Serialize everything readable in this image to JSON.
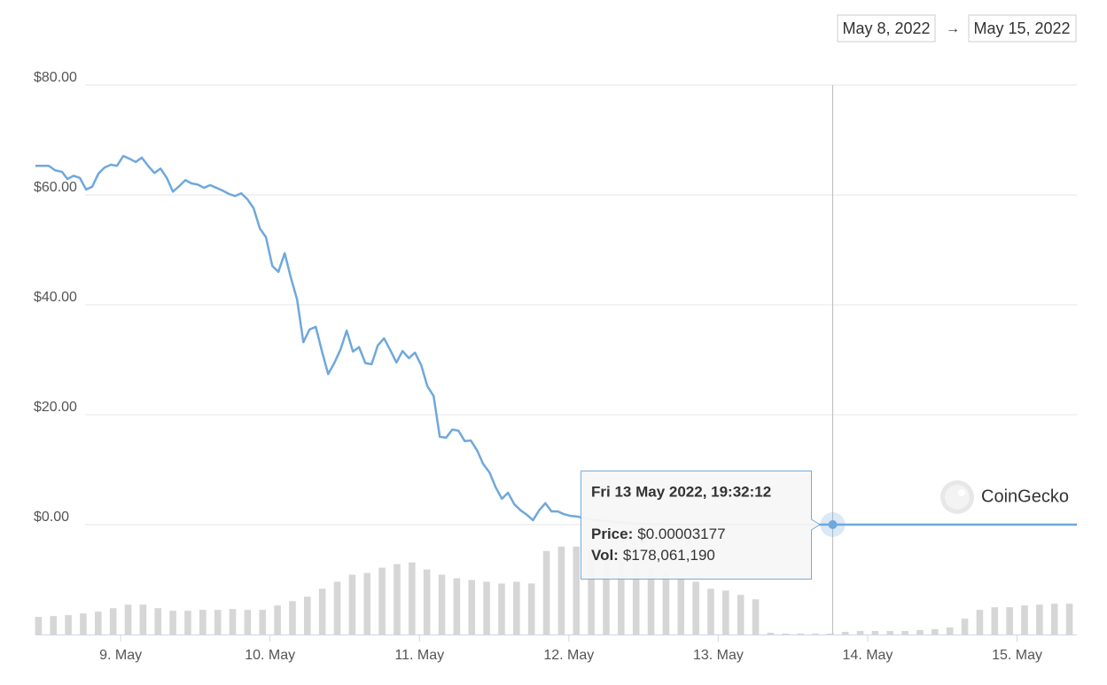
{
  "chart_data": {
    "type": "line",
    "date_from": "May 8, 2022",
    "arrow": "→",
    "date_to": "May 15, 2022",
    "watermark": "CoinGecko",
    "xlim": [
      8.43,
      15.4
    ],
    "xticks": [
      {
        "value": 9,
        "label": "9. May"
      },
      {
        "value": 10,
        "label": "10. May"
      },
      {
        "value": 11,
        "label": "11. May"
      },
      {
        "value": 12,
        "label": "12. May"
      },
      {
        "value": 13,
        "label": "13. May"
      },
      {
        "value": 14,
        "label": "14. May"
      },
      {
        "value": 15,
        "label": "15. May"
      }
    ],
    "ylim": [
      0,
      80
    ],
    "yticks": [
      {
        "value": 0,
        "label": "$0.00"
      },
      {
        "value": 20,
        "label": "$20.00"
      },
      {
        "value": 40,
        "label": "$40.00"
      },
      {
        "value": 60,
        "label": "$60.00"
      },
      {
        "value": 80,
        "label": "$80.00"
      }
    ],
    "y2lim": [
      0,
      7500000000
    ],
    "grid": true,
    "series": [
      {
        "color": "#6fa8dc",
        "x": [
          8.43,
          8.519,
          8.561,
          8.608,
          8.644,
          8.685,
          8.727,
          8.769,
          8.81,
          8.852,
          8.893,
          8.935,
          8.976,
          9.018,
          9.059,
          9.101,
          9.142,
          9.184,
          9.226,
          9.267,
          9.309,
          9.35,
          9.392,
          9.433,
          9.475,
          9.516,
          9.558,
          9.599,
          9.641,
          9.682,
          9.724,
          9.766,
          9.807,
          9.849,
          9.89,
          9.932,
          9.973,
          10.015,
          10.056,
          10.098,
          10.139,
          10.181,
          10.223,
          10.264,
          10.306,
          10.347,
          10.389,
          10.43,
          10.472,
          10.513,
          10.555,
          10.596,
          10.638,
          10.68,
          10.721,
          10.763,
          10.804,
          10.846,
          10.887,
          10.929,
          10.97,
          11.012,
          11.053,
          11.095,
          11.136,
          11.178,
          11.22,
          11.261,
          11.303,
          11.344,
          11.386,
          11.427,
          11.469,
          11.51,
          11.552,
          11.593,
          11.635,
          11.677,
          11.718,
          11.76,
          11.801,
          11.843,
          11.884,
          11.926,
          11.967,
          12.009,
          12.05,
          12.15,
          12.3,
          12.45,
          12.6,
          12.8,
          13.0,
          13.3,
          13.5,
          13.766,
          14.0,
          14.5,
          15.0,
          15.4
        ],
        "values": [
          65.3,
          65.3,
          64.5,
          64.2,
          62.9,
          63.5,
          63.1,
          61,
          61.5,
          63.9,
          65,
          65.5,
          65.3,
          67.1,
          66.6,
          66,
          66.8,
          65.3,
          64,
          64.8,
          63.1,
          60.6,
          61.6,
          62.7,
          62.1,
          61.9,
          61.3,
          61.8,
          61.3,
          60.8,
          60.2,
          59.8,
          60.3,
          59.2,
          57.6,
          53.9,
          52.3,
          47.1,
          46,
          49.4,
          45,
          41,
          33.2,
          35.5,
          36,
          31.6,
          27.4,
          29.4,
          31.9,
          35.3,
          31.5,
          32.3,
          29.4,
          29.2,
          32.6,
          33.9,
          31.8,
          29.5,
          31.6,
          30.3,
          31.3,
          29,
          25.2,
          23.4,
          16,
          15.8,
          17.3,
          17.1,
          15.2,
          15.3,
          13.5,
          11,
          9.5,
          6.8,
          4.7,
          5.8,
          3.7,
          2.6,
          1.8,
          0.8,
          2.6,
          3.9,
          2.4,
          2.4,
          1.9,
          1.6,
          1.5,
          0.9,
          0.5,
          0.2,
          0.05,
          0.01,
          0.001,
          0.0002,
          8e-05,
          3.177e-05,
          3e-05,
          2.5e-05,
          2e-05,
          2e-05
        ]
      },
      {
        "type": "bar",
        "axis": "y2",
        "color": "#d6d6d6",
        "x": [
          8.45,
          8.55,
          8.65,
          8.75,
          8.85,
          8.95,
          9.05,
          9.15,
          9.25,
          9.35,
          9.45,
          9.55,
          9.65,
          9.75,
          9.85,
          9.95,
          10.05,
          10.15,
          10.25,
          10.35,
          10.45,
          10.55,
          10.65,
          10.75,
          10.85,
          10.95,
          11.05,
          11.15,
          11.25,
          11.35,
          11.45,
          11.55,
          11.65,
          11.75,
          11.85,
          11.95,
          12.05,
          12.15,
          12.25,
          12.35,
          12.45,
          12.55,
          12.65,
          12.75,
          12.85,
          12.95,
          13.05,
          13.15,
          13.25,
          13.35,
          13.45,
          13.55,
          13.65,
          13.75,
          13.85,
          13.95,
          14.05,
          14.15,
          14.25,
          14.35,
          14.45,
          14.55,
          14.65,
          14.75,
          14.85,
          14.95,
          15.05,
          15.15,
          15.25,
          15.35
        ],
        "values": [
          1200000000,
          1260000000,
          1320000000,
          1440000000,
          1560000000,
          1800000000,
          2040000000,
          2040000000,
          1800000000,
          1620000000,
          1620000000,
          1680000000,
          1680000000,
          1740000000,
          1680000000,
          1680000000,
          1980000000,
          2280000000,
          2580000000,
          3120000000,
          3600000000,
          4080000000,
          4200000000,
          4560000000,
          4800000000,
          4920000000,
          4440000000,
          4080000000,
          3840000000,
          3720000000,
          3600000000,
          3480000000,
          3600000000,
          3480000000,
          5700000000,
          6000000000,
          6000000000,
          5700000000,
          5400000000,
          5100000000,
          4800000000,
          4500000000,
          4200000000,
          3960000000,
          3600000000,
          3120000000,
          3000000000,
          2700000000,
          2400000000,
          120000000,
          60000000,
          60000000,
          60000000,
          60000000,
          180000000,
          240000000,
          240000000,
          240000000,
          240000000,
          300000000,
          360000000,
          480000000,
          1080000000,
          1680000000,
          1860000000,
          1860000000,
          1980000000,
          2040000000,
          2100000000,
          2100000000
        ]
      }
    ],
    "tooltip": {
      "title": "Fri 13 May 2022, 19:32:12",
      "price_label": "Price:",
      "price": "$0.00003177",
      "vol_label": "Vol:",
      "vol": "$178,061,190"
    }
  }
}
